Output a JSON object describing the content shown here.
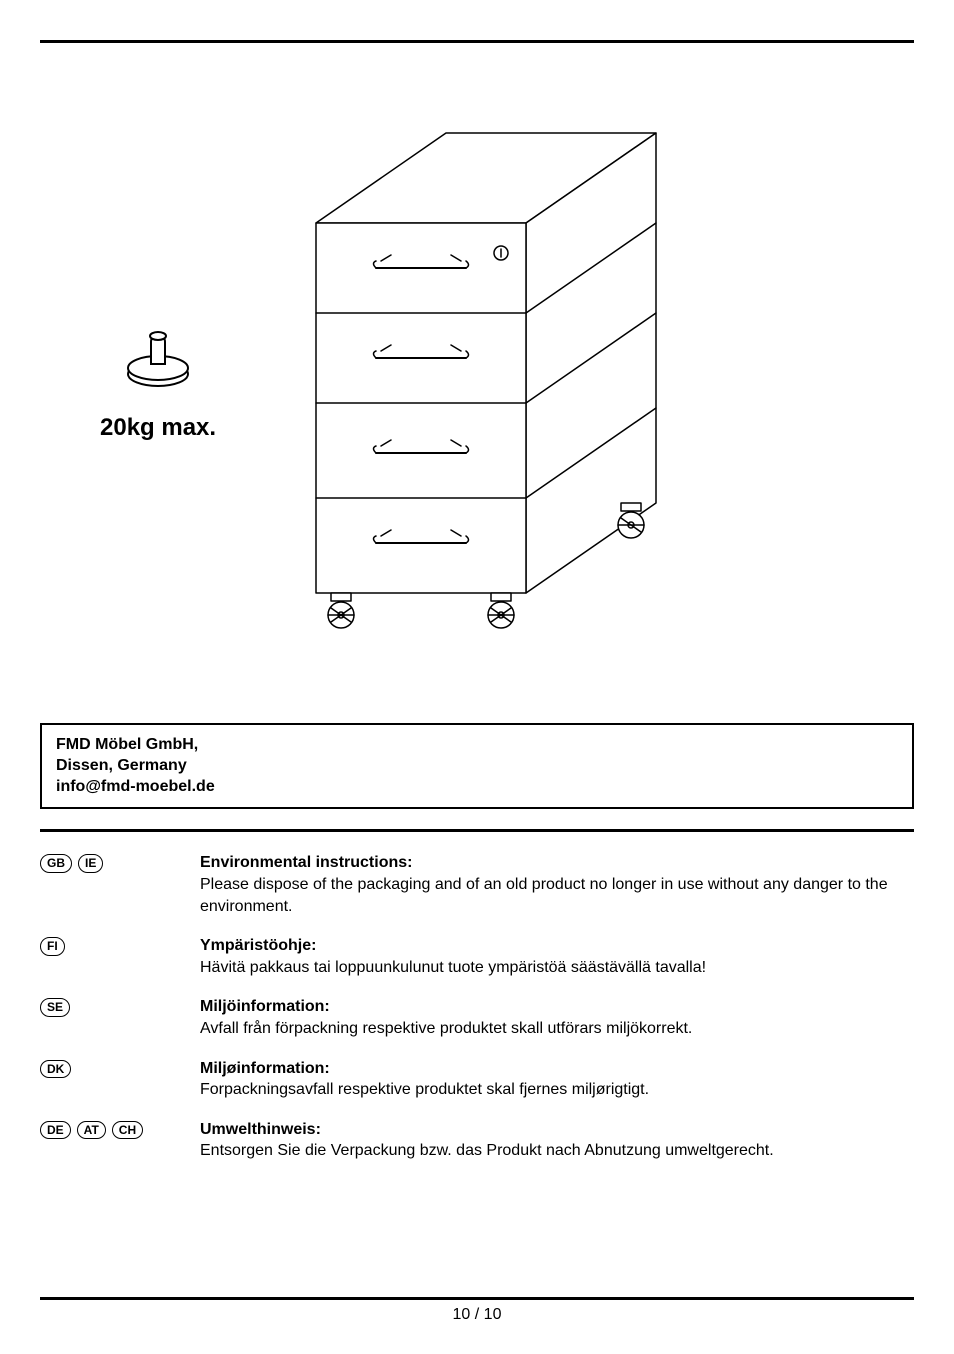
{
  "weight": {
    "label": "20kg max."
  },
  "company": {
    "name": "FMD Möbel GmbH,",
    "city": "Dissen, Germany",
    "email": "info@fmd-moebel.de"
  },
  "languages": [
    {
      "codes": [
        "GB",
        "IE"
      ],
      "title": "Environmental instructions:",
      "text": "Please dispose of the packaging and of an old product no longer in use without any danger to the environment."
    },
    {
      "codes": [
        "FI"
      ],
      "title": "Ympäristöohje:",
      "text": "Hävitä pakkaus tai loppuunkulunut tuote ympäristöä säästävällä tavalla!"
    },
    {
      "codes": [
        "SE"
      ],
      "title": "Miljöinformation:",
      "text": "Avfall från förpackning respektive produktet skall utförars miljökorrekt."
    },
    {
      "codes": [
        "DK"
      ],
      "title": "Miljøinformation:",
      "text": "Forpackningsavfall respektive produktet skal fjernes miljørigtigt."
    },
    {
      "codes": [
        "DE",
        "AT",
        "CH"
      ],
      "title": "Umwelthinweis:",
      "text": "Entsorgen Sie die Verpackung bzw. das Produkt nach Abnutzung umweltgerecht."
    }
  ],
  "page_number": "10 / 10",
  "colors": {
    "text": "#000000",
    "background": "#ffffff",
    "hatch": "#999999"
  },
  "diagram": {
    "type": "line-drawing",
    "subject": "rolling-drawer-cabinet",
    "drawers": 4,
    "has_lock": true,
    "caster_count": 4,
    "stroke_color": "#000000",
    "stroke_width": 1.5
  }
}
